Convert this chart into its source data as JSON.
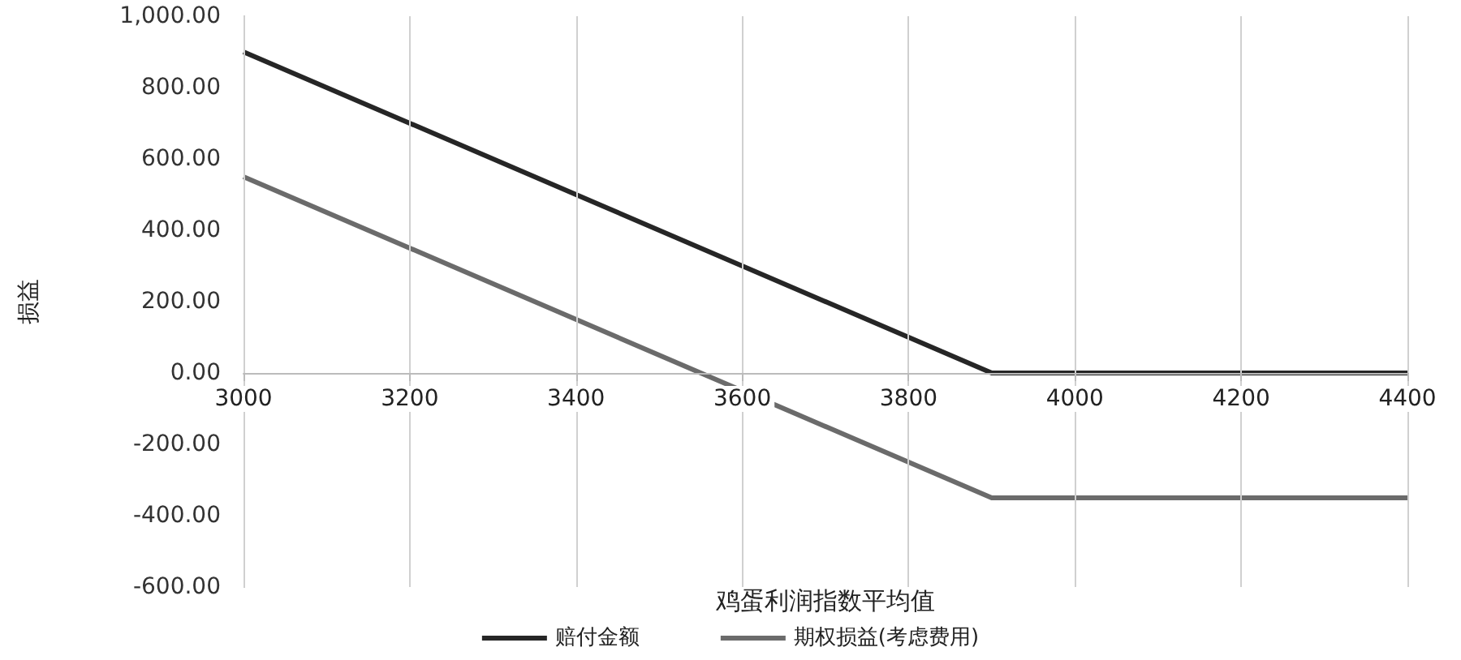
{
  "chart_data": {
    "type": "line",
    "xlabel": "鸡蛋利润指数平均值",
    "ylabel": "损益",
    "series": [
      {
        "name": "赔付金额",
        "color": "#262626",
        "x": [
          3000,
          3900,
          4400
        ],
        "values": [
          900,
          0,
          0
        ]
      },
      {
        "name": "期权损益(考虑费用)",
        "color": "#6b6b6b",
        "x": [
          3000,
          3900,
          4400
        ],
        "values": [
          550,
          -350,
          -350
        ]
      }
    ],
    "xlim": [
      3000,
      4400
    ],
    "xticks": [
      3000,
      3200,
      3400,
      3600,
      3800,
      4000,
      4200,
      4400
    ],
    "ylim": [
      -600,
      1000
    ],
    "yticks": [
      {
        "value": -600,
        "label": "-600.00"
      },
      {
        "value": -400,
        "label": "-400.00"
      },
      {
        "value": -200,
        "label": "-200.00"
      },
      {
        "value": 0,
        "label": "0.00"
      },
      {
        "value": 200,
        "label": "200.00"
      },
      {
        "value": 400,
        "label": "400.00"
      },
      {
        "value": 600,
        "label": "600.00"
      },
      {
        "value": 800,
        "label": "800.00"
      },
      {
        "value": 1000,
        "label": "1,000.00"
      }
    ],
    "grid": "x",
    "legend": "bottom",
    "marker": "none",
    "line_style": "solid"
  }
}
